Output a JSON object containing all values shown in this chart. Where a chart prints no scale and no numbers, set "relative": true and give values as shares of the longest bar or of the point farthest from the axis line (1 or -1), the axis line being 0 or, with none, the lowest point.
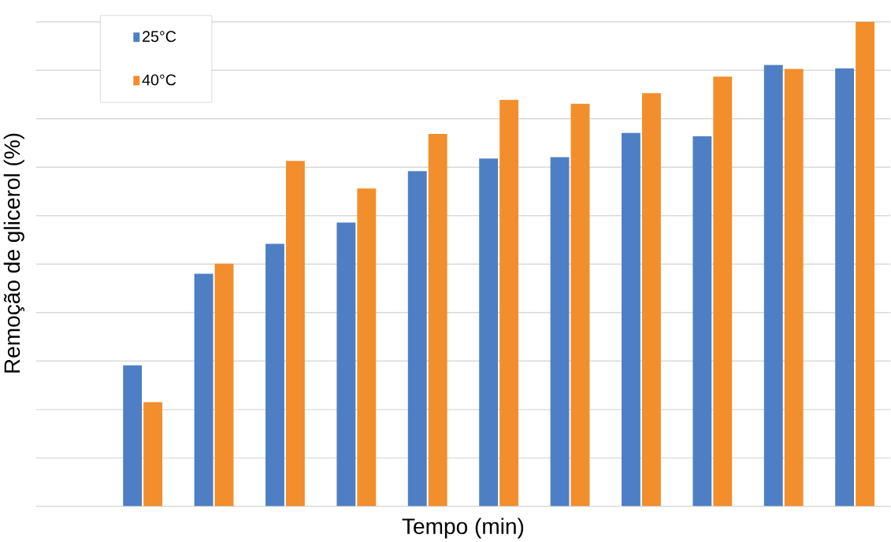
{
  "chart_data": {
    "type": "bar",
    "relative": true,
    "xlabel": "Tempo (min)",
    "ylabel": "Remoção de glicerol (%)",
    "categories": [
      null,
      null,
      null,
      null,
      null,
      null,
      null,
      null,
      null,
      null,
      null
    ],
    "series": [
      {
        "name": "25°C",
        "color": "#4e7fc4",
        "values": [
          0.291,
          0.48,
          0.542,
          0.586,
          0.692,
          0.718,
          0.721,
          0.771,
          0.764,
          0.911,
          0.904
        ]
      },
      {
        "name": "40°C",
        "color": "#f28e2b",
        "values": [
          0.215,
          0.501,
          0.713,
          0.656,
          0.769,
          0.839,
          0.831,
          0.853,
          0.887,
          0.903,
          1
        ]
      }
    ],
    "grid": "y",
    "legend": "top left"
  }
}
